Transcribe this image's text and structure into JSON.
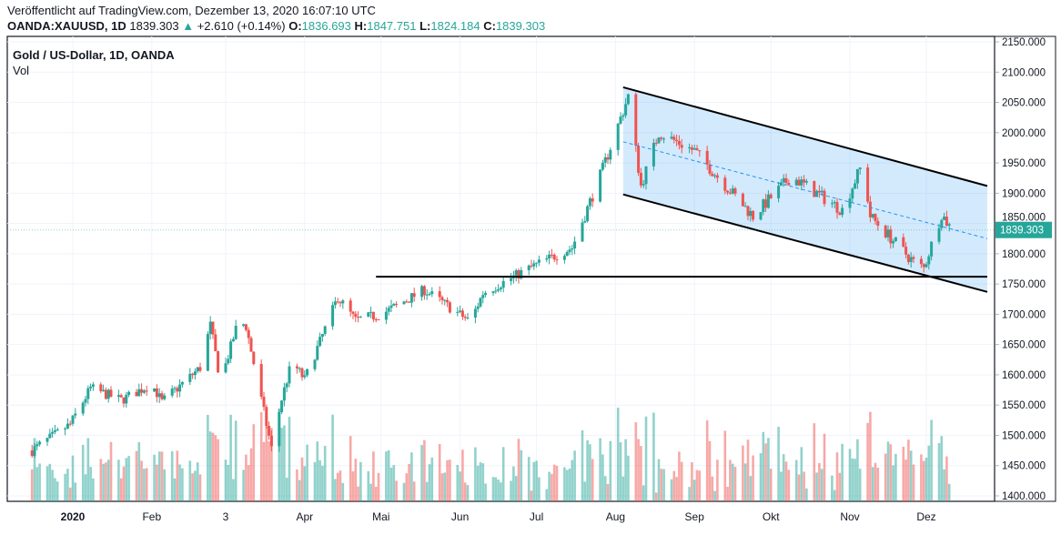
{
  "header": {
    "published": "Veröffentlicht auf TradingView.com, Dezember 13, 2020 16:07:10 UTC",
    "symbol": "OANDA:XAUUSD, 1D",
    "last": "1839.303",
    "change": "+2.610 (+0.14%)",
    "o_label": "O:",
    "o": "1836.693",
    "h_label": "H:",
    "h": "1847.751",
    "l_label": "L:",
    "l": "1824.184",
    "c_label": "C:",
    "c": "1839.303"
  },
  "legend": {
    "title": "Gold  / US-Dollar, 1D, OANDA",
    "vol": "Vol"
  },
  "colors": {
    "up": "#26a69a",
    "down": "#ef5350",
    "channel": "#2196f3"
  },
  "chart_data": {
    "type": "candlestick",
    "title": "Gold / US-Dollar, 1D, OANDA",
    "ylim": [
      1400,
      2150
    ],
    "y_ticks": [
      "2150.000",
      "2100.000",
      "2050.000",
      "2000.000",
      "1950.000",
      "1900.000",
      "1850.000",
      "1800.000",
      "1750.000",
      "1700.000",
      "1650.000",
      "1600.000",
      "1550.000",
      "1500.000",
      "1450.000",
      "1400.000"
    ],
    "x_ticks": [
      {
        "label": "2020",
        "day": 0
      },
      {
        "label": "Feb",
        "day": 31
      },
      {
        "label": "3",
        "day": 60
      },
      {
        "label": "Apr",
        "day": 91
      },
      {
        "label": "Mai",
        "day": 121
      },
      {
        "label": "Jun",
        "day": 152
      },
      {
        "label": "Jul",
        "day": 182
      },
      {
        "label": "Aug",
        "day": 213
      },
      {
        "label": "Sep",
        "day": 244
      },
      {
        "label": "Okt",
        "day": 274
      },
      {
        "label": "Nov",
        "day": 305
      },
      {
        "label": "Dez",
        "day": 335
      }
    ],
    "close_path": [
      [
        -16,
        1475
      ],
      [
        -1,
        1518
      ],
      [
        7,
        1578
      ],
      [
        19,
        1558
      ],
      [
        31,
        1585
      ],
      [
        35,
        1555
      ],
      [
        50,
        1612
      ],
      [
        54,
        1682
      ],
      [
        58,
        1588
      ],
      [
        65,
        1690
      ],
      [
        68,
        1680
      ],
      [
        78,
        1478
      ],
      [
        82,
        1560
      ],
      [
        86,
        1622
      ],
      [
        91,
        1592
      ],
      [
        104,
        1728
      ],
      [
        111,
        1690
      ],
      [
        121,
        1700
      ],
      [
        138,
        1740
      ],
      [
        156,
        1688
      ],
      [
        161,
        1735
      ],
      [
        181,
        1780
      ],
      [
        196,
        1810
      ],
      [
        208,
        1940
      ],
      [
        218,
        2060
      ],
      [
        223,
        1912
      ],
      [
        230,
        2000
      ],
      [
        244,
        1970
      ],
      [
        267,
        1862
      ],
      [
        282,
        1928
      ],
      [
        302,
        1872
      ],
      [
        310,
        1950
      ],
      [
        313,
        1862
      ],
      [
        331,
        1782
      ],
      [
        334,
        1776
      ],
      [
        341,
        1866
      ],
      [
        345,
        1839
      ]
    ],
    "last_price": "1839.303",
    "channel": {
      "start_day": 216,
      "upper": [
        2075,
        1912
      ],
      "lower": [
        1898,
        1737
      ],
      "mid": [
        1985,
        1825
      ]
    },
    "support": {
      "price": 1762,
      "start_day": 119
    },
    "volume_ylim": [
      0,
      1
    ]
  }
}
